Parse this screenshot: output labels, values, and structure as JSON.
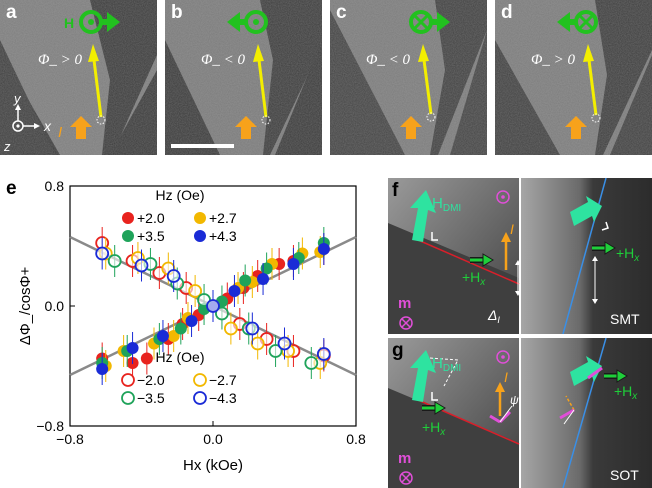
{
  "panels_top": [
    {
      "label": "a",
      "phi_text": "Φ_ > 0",
      "field_label": "H"
    },
    {
      "label": "b",
      "phi_text": "Φ_ < 0"
    },
    {
      "label": "c",
      "phi_text": "Φ_ < 0"
    },
    {
      "label": "d",
      "phi_text": "Φ_ > 0"
    }
  ],
  "axes_labels": {
    "y": "y",
    "x": "x",
    "z": "z",
    "current": "I"
  },
  "chart_data": {
    "type": "scatter",
    "panel_label": "e",
    "xlabel": "Hx (kOe)",
    "ylabel": "ΔΦ_/cosΦ+",
    "xlim": [
      -0.8,
      0.8
    ],
    "ylim": [
      -0.8,
      0.8
    ],
    "xticks": [
      "−0.8",
      "0.0",
      "0.8"
    ],
    "yticks": [
      "0.8",
      "0.0",
      "−0.8"
    ],
    "legend_title": "Hz (Oe)",
    "series": [
      {
        "name": "+2.0",
        "color": "#e8231e",
        "filled": true,
        "x": [
          -0.62,
          -0.45,
          -0.37,
          -0.25,
          -0.17,
          -0.08,
          0.08,
          0.17,
          0.25,
          0.37,
          0.45,
          0.62
        ],
        "y": [
          -0.35,
          -0.38,
          -0.35,
          -0.22,
          -0.12,
          -0.06,
          0.05,
          0.12,
          0.2,
          0.28,
          0.3,
          0.38
        ]
      },
      {
        "name": "+2.7",
        "color": "#f2b800",
        "filled": true,
        "x": [
          -0.6,
          -0.5,
          -0.33,
          -0.22,
          -0.14,
          0.14,
          0.22,
          0.33,
          0.5,
          0.6
        ],
        "y": [
          -0.4,
          -0.3,
          -0.25,
          -0.2,
          -0.08,
          0.12,
          0.16,
          0.28,
          0.35,
          0.36
        ]
      },
      {
        "name": "+3.5",
        "color": "#1fa35a",
        "filled": true,
        "x": [
          -0.62,
          -0.48,
          -0.3,
          -0.18,
          -0.05,
          0.05,
          0.18,
          0.3,
          0.48,
          0.62
        ],
        "y": [
          -0.38,
          -0.3,
          -0.22,
          -0.15,
          -0.02,
          0.03,
          0.17,
          0.25,
          0.32,
          0.42
        ]
      },
      {
        "name": "+4.3",
        "color": "#1a2bd6",
        "filled": true,
        "x": [
          -0.62,
          -0.45,
          -0.28,
          -0.12,
          0.0,
          0.12,
          0.28,
          0.45,
          0.62
        ],
        "y": [
          -0.42,
          -0.28,
          -0.2,
          -0.1,
          0.0,
          0.1,
          0.18,
          0.28,
          0.38
        ]
      },
      {
        "name": "−2.0",
        "color": "#e8231e",
        "filled": false,
        "x": [
          -0.62,
          -0.45,
          -0.3,
          -0.15,
          0.15,
          0.3,
          0.45,
          0.62
        ],
        "y": [
          0.42,
          0.3,
          0.22,
          0.12,
          -0.12,
          -0.22,
          -0.3,
          -0.33
        ]
      },
      {
        "name": "−2.7",
        "color": "#f2b800",
        "filled": false,
        "x": [
          -0.6,
          -0.42,
          -0.25,
          -0.1,
          0.1,
          0.25,
          0.42,
          0.6
        ],
        "y": [
          0.35,
          0.32,
          0.25,
          0.1,
          -0.15,
          -0.25,
          -0.3,
          -0.38
        ]
      },
      {
        "name": "−3.5",
        "color": "#1fa35a",
        "filled": false,
        "x": [
          -0.55,
          -0.35,
          -0.2,
          -0.05,
          0.05,
          0.2,
          0.35,
          0.55
        ],
        "y": [
          0.3,
          0.28,
          0.15,
          0.04,
          -0.05,
          -0.15,
          -0.3,
          -0.38
        ]
      },
      {
        "name": "−4.3",
        "color": "#1a2bd6",
        "filled": false,
        "x": [
          -0.62,
          -0.4,
          -0.22,
          0.0,
          0.22,
          0.4,
          0.62
        ],
        "y": [
          0.35,
          0.27,
          0.2,
          0.0,
          -0.15,
          -0.25,
          -0.32
        ]
      }
    ],
    "fit_lines": [
      {
        "x": [
          -0.8,
          0.8
        ],
        "y": [
          -0.46,
          0.46
        ]
      },
      {
        "x": [
          -0.8,
          0.8
        ],
        "y": [
          0.46,
          -0.46
        ]
      }
    ]
  },
  "panel_f": {
    "label": "f",
    "hdmi": "H",
    "hdmi_sub": "DMI",
    "hx": "+H",
    "hx_sub": "x",
    "current": "I",
    "m": "m",
    "delta": "Δ",
    "delta_sub": "I",
    "tag": "SMT"
  },
  "panel_g": {
    "label": "g",
    "hdmi": "H",
    "hdmi_sub": "DMI",
    "hx": "+H",
    "hx_sub": "x",
    "current": "I",
    "psi": "ψ",
    "m": "m",
    "tag": "SOT"
  }
}
